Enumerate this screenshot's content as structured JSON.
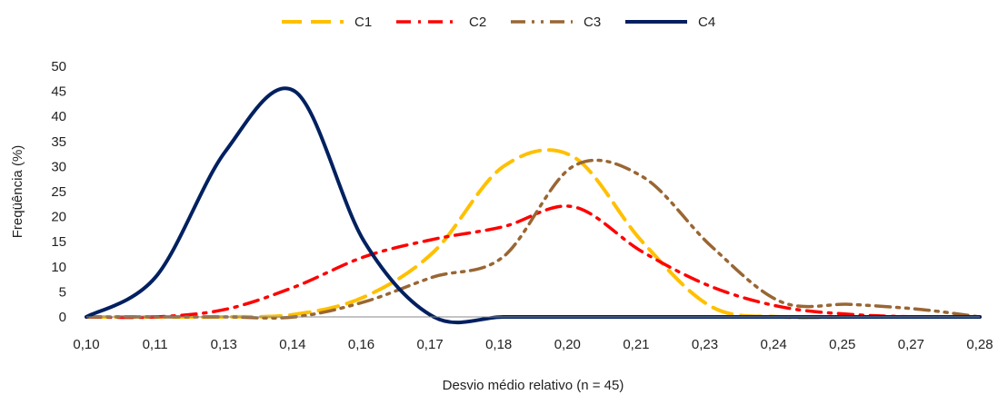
{
  "chart_data": {
    "type": "line",
    "xlabel": "Desvio médio relativo (n = 45)",
    "ylabel": "Freqüência (%)",
    "xlim": [
      0.1,
      0.28
    ],
    "ylim": [
      0,
      50
    ],
    "x_ticks": [
      "0,10",
      "0,11",
      "0,13",
      "0,14",
      "0,16",
      "0,17",
      "0,18",
      "0,20",
      "0,21",
      "0,23",
      "0,24",
      "0,25",
      "0,27",
      "0,28"
    ],
    "y_ticks": [
      0,
      5,
      10,
      15,
      20,
      25,
      30,
      35,
      40,
      45,
      50
    ],
    "legend_position": "top-center",
    "series": [
      {
        "name": "C1",
        "color": "#FFC000",
        "dash": "dashed",
        "x": [
          0.1,
          0.114,
          0.128,
          0.142,
          0.156,
          0.17,
          0.184,
          0.198,
          0.212,
          0.226,
          0.24,
          0.254,
          0.268,
          0.28
        ],
        "y": [
          0,
          0,
          0,
          0.5,
          4,
          13,
          30,
          32,
          15,
          2,
          0,
          0,
          0,
          0
        ]
      },
      {
        "name": "C2",
        "color": "#FF0000",
        "dash": "dash-dot",
        "x": [
          0.1,
          0.114,
          0.128,
          0.142,
          0.156,
          0.17,
          0.184,
          0.198,
          0.212,
          0.226,
          0.24,
          0.254,
          0.268,
          0.28
        ],
        "y": [
          0,
          0,
          1.5,
          6,
          12,
          15.5,
          18,
          22,
          13,
          6,
          2,
          0.5,
          0,
          0
        ]
      },
      {
        "name": "C3",
        "color": "#996633",
        "dash": "dash-dot-dot",
        "x": [
          0.1,
          0.114,
          0.128,
          0.142,
          0.156,
          0.17,
          0.184,
          0.198,
          0.212,
          0.226,
          0.24,
          0.254,
          0.268,
          0.28
        ],
        "y": [
          0,
          0,
          0,
          0,
          3,
          8,
          12,
          30,
          28,
          14,
          3,
          2.5,
          1.5,
          0
        ]
      },
      {
        "name": "C4",
        "color": "#002060",
        "dash": "solid",
        "x": [
          0.1,
          0.114,
          0.128,
          0.142,
          0.156,
          0.17,
          0.184,
          0.198,
          0.212,
          0.226,
          0.24,
          0.254,
          0.268,
          0.28
        ],
        "y": [
          0,
          8,
          33,
          45,
          15,
          0,
          0,
          0,
          0,
          0,
          0,
          0,
          0,
          0
        ]
      }
    ]
  }
}
